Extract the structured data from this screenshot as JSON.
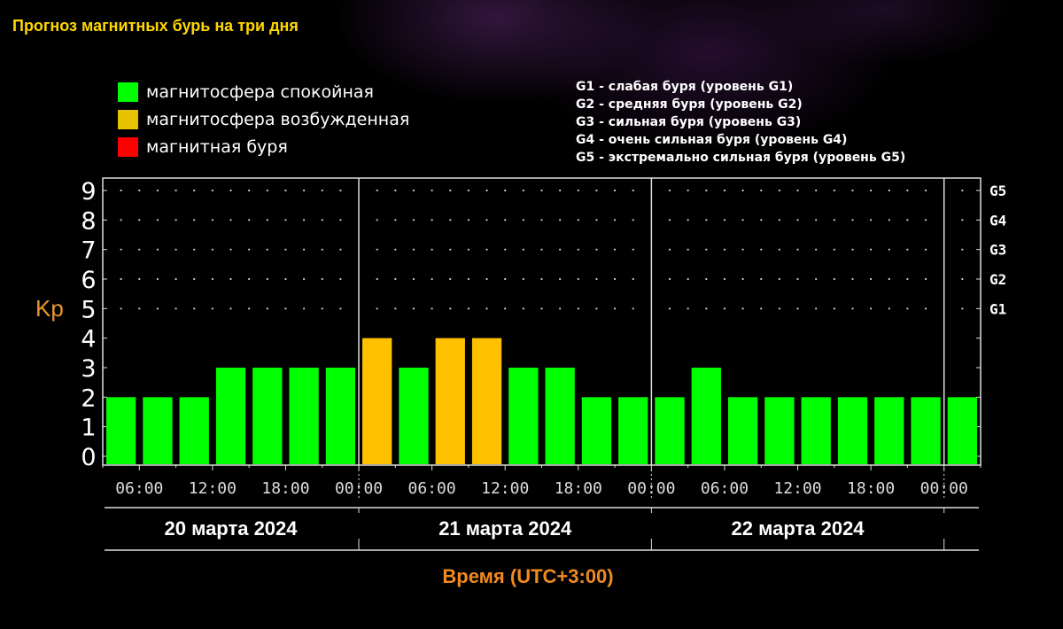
{
  "title": "Прогноз магнитных бурь на три дня",
  "legend": [
    {
      "label": "магнитосфера спокойная",
      "color": "#00ff00"
    },
    {
      "label": "магнитосфера возбужденная",
      "color": "#e6c200"
    },
    {
      "label": "магнитная буря",
      "color": "#ff0000"
    }
  ],
  "g_legend": [
    "G1 - слабая буря (уровень G1)",
    "G2 - средняя буря (уровень G2)",
    "G3 - сильная буря (уровень G3)",
    "G4 - очень сильная буря (уровень G4)",
    "G5 - экстремально сильная буря (уровень G5)"
  ],
  "chart_data": {
    "type": "bar",
    "title": "Прогноз магнитных бурь на три дня",
    "ylabel": "Kp",
    "xlabel": "Время (UTC+3:00)",
    "ylim": [
      0,
      9
    ],
    "yticks": [
      "0",
      "1",
      "2",
      "3",
      "4",
      "5",
      "6",
      "7",
      "8",
      "9"
    ],
    "g_levels": [
      {
        "label": "G1",
        "kp": 5
      },
      {
        "label": "G2",
        "kp": 6
      },
      {
        "label": "G3",
        "kp": 7
      },
      {
        "label": "G4",
        "kp": 8
      },
      {
        "label": "G5",
        "kp": 9
      }
    ],
    "xticks": [
      "06:00",
      "12:00",
      "18:00",
      "00:00",
      "06:00",
      "12:00",
      "18:00",
      "00:00",
      "06:00",
      "12:00",
      "18:00",
      "00:00"
    ],
    "days": [
      "20 марта 2024",
      "21 марта 2024",
      "22 марта 2024"
    ],
    "interval_hours": 3,
    "values": [
      2,
      2,
      2,
      3,
      3,
      3,
      3,
      4,
      3,
      4,
      4,
      3,
      3,
      2,
      2,
      2,
      3,
      2,
      2,
      2,
      2,
      2,
      2,
      2
    ],
    "bar_colors": {
      "quiet": "#00ff00",
      "active": "#ffc000",
      "storm": "#ff0000"
    },
    "grid": "dotted above Kp 4"
  }
}
